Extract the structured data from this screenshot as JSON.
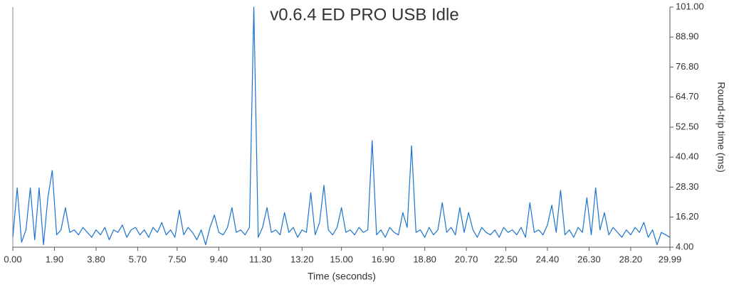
{
  "chart_data": {
    "type": "line",
    "title": "v0.6.4 ED PRO USB Idle",
    "x_label": "Time (seconds)",
    "y_label": "Round-trip time (ms)",
    "x": [
      0.0,
      0.2,
      0.4,
      0.6,
      0.8,
      1.0,
      1.2,
      1.4,
      1.6,
      1.8,
      2.0,
      2.2,
      2.4,
      2.6,
      2.8,
      3.0,
      3.2,
      3.4,
      3.6,
      3.8,
      4.0,
      4.2,
      4.4,
      4.6,
      4.8,
      5.0,
      5.2,
      5.4,
      5.6,
      5.8,
      6.0,
      6.2,
      6.4,
      6.6,
      6.8,
      7.0,
      7.2,
      7.4,
      7.6,
      7.8,
      8.0,
      8.2,
      8.4,
      8.6,
      8.8,
      9.0,
      9.2,
      9.4,
      9.6,
      9.8,
      10.0,
      10.2,
      10.4,
      10.6,
      10.8,
      11.0,
      11.2,
      11.4,
      11.6,
      11.8,
      12.0,
      12.2,
      12.4,
      12.6,
      12.8,
      13.0,
      13.2,
      13.4,
      13.6,
      13.8,
      14.0,
      14.2,
      14.4,
      14.6,
      14.8,
      15.0,
      15.2,
      15.4,
      15.6,
      15.8,
      16.0,
      16.2,
      16.4,
      16.6,
      16.8,
      17.0,
      17.2,
      17.4,
      17.6,
      17.8,
      18.0,
      18.2,
      18.4,
      18.6,
      18.8,
      19.0,
      19.2,
      19.4,
      19.6,
      19.8,
      20.0,
      20.2,
      20.4,
      20.6,
      20.8,
      21.0,
      21.2,
      21.4,
      21.6,
      21.8,
      22.0,
      22.2,
      22.4,
      22.6,
      22.8,
      23.0,
      23.2,
      23.4,
      23.6,
      23.8,
      24.0,
      24.2,
      24.4,
      24.6,
      24.8,
      25.0,
      25.2,
      25.4,
      25.6,
      25.8,
      26.0,
      26.2,
      26.4,
      26.6,
      26.8,
      27.0,
      27.2,
      27.4,
      27.6,
      27.8,
      28.0,
      28.2,
      28.4,
      28.6,
      28.8,
      29.0,
      29.2,
      29.4,
      29.6,
      29.8,
      29.99
    ],
    "series": [
      {
        "name": "Round-trip time",
        "color": "#1a73cc",
        "values": [
          8,
          28,
          6,
          11,
          28,
          7,
          28,
          5,
          24,
          35,
          9,
          11,
          20,
          10,
          11,
          9,
          12,
          10,
          8,
          11,
          9,
          12,
          7,
          11,
          10,
          13,
          8,
          11,
          12,
          9,
          11,
          8,
          12,
          10,
          14,
          9,
          11,
          8,
          19,
          9,
          12,
          10,
          7,
          11,
          5,
          12,
          17,
          10,
          9,
          12,
          20,
          10,
          11,
          9,
          12,
          101,
          8,
          12,
          20,
          10,
          11,
          9,
          18,
          10,
          12,
          8,
          11,
          10,
          26,
          9,
          14,
          29,
          11,
          9,
          12,
          20,
          10,
          11,
          9,
          12,
          10,
          11,
          47,
          9,
          11,
          8,
          12,
          10,
          9,
          18,
          12,
          45,
          10,
          11,
          8,
          12,
          9,
          11,
          22,
          10,
          12,
          9,
          20,
          10,
          18,
          11,
          8,
          12,
          10,
          9,
          11,
          8,
          12,
          10,
          11,
          9,
          12,
          8,
          22,
          10,
          11,
          9,
          13,
          21,
          10,
          27,
          9,
          11,
          8,
          12,
          10,
          24,
          9,
          28,
          11,
          18,
          9,
          12,
          10,
          8,
          11,
          9,
          12,
          10,
          14,
          8,
          11,
          5,
          10,
          9,
          8
        ]
      }
    ],
    "xlim": [
      0,
      29.99
    ],
    "xticks": [
      {
        "value": 0,
        "label": "0.00"
      },
      {
        "value": 1.9,
        "label": "1.90"
      },
      {
        "value": 3.8,
        "label": "3.80"
      },
      {
        "value": 5.7,
        "label": "5.70"
      },
      {
        "value": 7.5,
        "label": "7.50"
      },
      {
        "value": 9.4,
        "label": "9.40"
      },
      {
        "value": 11.3,
        "label": "11.30"
      },
      {
        "value": 13.2,
        "label": "13.20"
      },
      {
        "value": 15,
        "label": "15.00"
      },
      {
        "value": 16.9,
        "label": "16.90"
      },
      {
        "value": 18.8,
        "label": "18.80"
      },
      {
        "value": 20.7,
        "label": "20.70"
      },
      {
        "value": 22.5,
        "label": "22.50"
      },
      {
        "value": 24.4,
        "label": "24.40"
      },
      {
        "value": 26.3,
        "label": "26.30"
      },
      {
        "value": 28.2,
        "label": "28.20"
      },
      29.99
    ],
    "ylim": [
      4,
      101
    ],
    "yticks": [
      {
        "value": 4,
        "label": "4.00"
      },
      {
        "value": 16.2,
        "label": "16.20"
      },
      {
        "value": 28.3,
        "label": "28.30"
      },
      {
        "value": 40.4,
        "label": "40.40"
      },
      {
        "value": 52.5,
        "label": "52.50"
      },
      {
        "value": 64.7,
        "label": "64.70"
      },
      {
        "value": 76.8,
        "label": "76.80"
      },
      {
        "value": 88.9,
        "label": "88.90"
      },
      {
        "value": 101,
        "label": "101.00"
      }
    ],
    "y_axis_side": "right"
  }
}
